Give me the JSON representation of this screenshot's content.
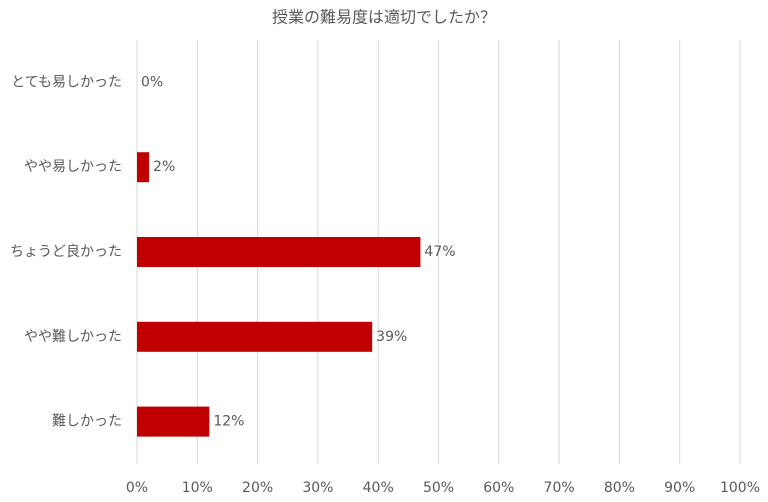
{
  "chart_data": {
    "type": "hbar",
    "title": "授業の難易度は適切でしたか？",
    "categories": [
      "とても易しかった",
      "やや易しかった",
      "ちょうど良かった",
      "やや難しかった",
      "難しかった"
    ],
    "values": [
      0,
      2,
      47,
      39,
      12
    ],
    "value_labels": [
      "0%",
      "2%",
      "47%",
      "39%",
      "12%"
    ],
    "color": "#c00000",
    "xlim": [
      0,
      100
    ],
    "xticks": [
      {
        "value": 0,
        "label": "0%"
      },
      {
        "value": 10,
        "label": "10%"
      },
      {
        "value": 20,
        "label": "20%"
      },
      {
        "value": 30,
        "label": "30%"
      },
      {
        "value": 40,
        "label": "40%"
      },
      {
        "value": 50,
        "label": "50%"
      },
      {
        "value": 60,
        "label": "60%"
      },
      {
        "value": 70,
        "label": "70%"
      },
      {
        "value": 80,
        "label": "80%"
      },
      {
        "value": 90,
        "label": "90%"
      },
      {
        "value": 100,
        "label": "100%"
      }
    ],
    "grid": true
  }
}
